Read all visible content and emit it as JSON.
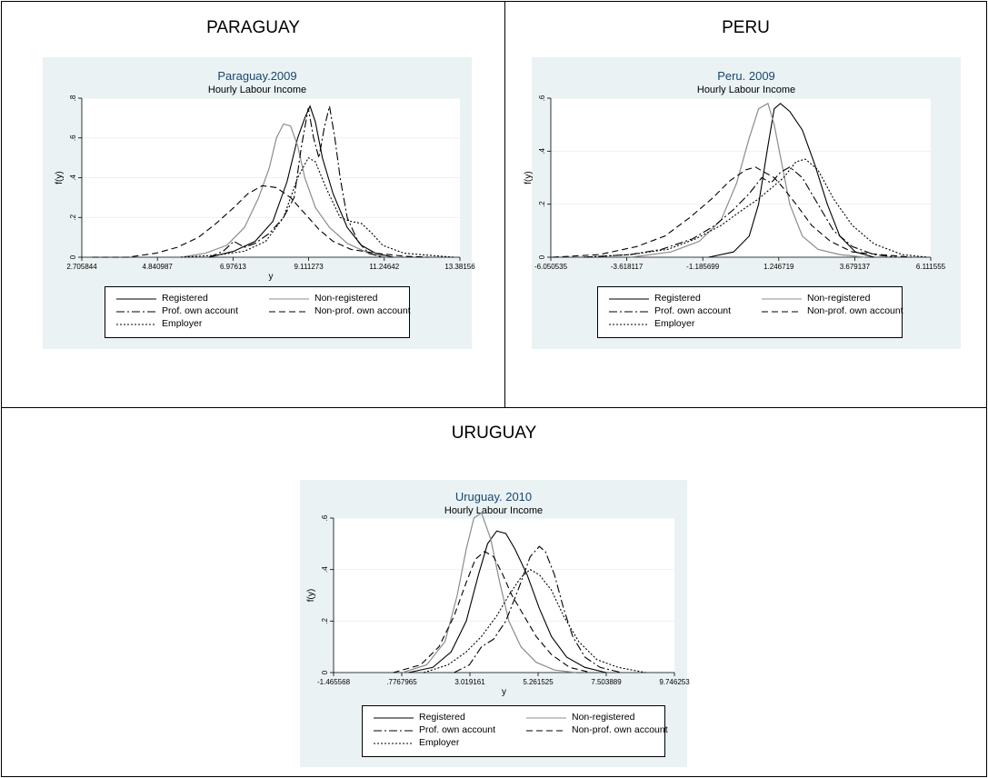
{
  "cells": {
    "paraguay": "PARAGUAY",
    "peru": "PERU",
    "uruguay": "URUGUAY"
  },
  "legend_labels": [
    "Registered",
    "Non-registered",
    "Prof. own account",
    "Non-prof. own account",
    "Employer"
  ],
  "chart_data": [
    {
      "type": "line",
      "title": "Paraguay.2009",
      "subtitle": "Hourly Labour Income",
      "xlabel": "y",
      "ylabel": "f(y)",
      "xlim": [
        2.705844,
        13.38156
      ],
      "ylim": [
        0,
        0.8
      ],
      "xticks": [
        "2.705844",
        "4.840987",
        "6.97613",
        "9.111273",
        "11.24642",
        "13.38156"
      ],
      "yticks": [
        "0",
        ".2",
        ".4",
        ".6",
        ".8"
      ],
      "grid": true,
      "legend_position": "bottom",
      "series": [
        {
          "name": "Registered",
          "style": "solid",
          "color": "#000000",
          "x": [
            6.3,
            7.0,
            7.6,
            8.1,
            8.5,
            8.8,
            9.0,
            9.15,
            9.3,
            9.5,
            9.8,
            10.2,
            10.6,
            11.0,
            11.5
          ],
          "y": [
            0.0,
            0.03,
            0.08,
            0.18,
            0.38,
            0.6,
            0.7,
            0.76,
            0.68,
            0.5,
            0.32,
            0.15,
            0.06,
            0.02,
            0.0
          ]
        },
        {
          "name": "Non-registered",
          "style": "solid",
          "color": "#8c8c8c",
          "x": [
            5.5,
            6.2,
            6.8,
            7.3,
            7.7,
            8.0,
            8.2,
            8.4,
            8.6,
            8.8,
            9.0,
            9.3,
            9.7,
            10.2,
            10.8,
            11.3
          ],
          "y": [
            0.0,
            0.02,
            0.06,
            0.15,
            0.3,
            0.45,
            0.6,
            0.67,
            0.66,
            0.56,
            0.4,
            0.25,
            0.15,
            0.07,
            0.02,
            0.0
          ]
        },
        {
          "name": "Prof. own account",
          "style": "dashdot",
          "color": "#000000",
          "x": [
            6.3,
            6.7,
            7.0,
            7.3,
            7.6,
            8.0,
            8.4,
            8.7,
            8.9,
            9.1,
            9.25,
            9.4,
            9.55,
            9.7,
            9.85,
            10.0,
            10.2,
            10.5,
            10.8,
            11.2
          ],
          "y": [
            0.0,
            0.03,
            0.08,
            0.05,
            0.07,
            0.12,
            0.2,
            0.3,
            0.55,
            0.75,
            0.6,
            0.5,
            0.65,
            0.76,
            0.6,
            0.4,
            0.2,
            0.08,
            0.02,
            0.0
          ]
        },
        {
          "name": "Non-prof. own account",
          "style": "dashed",
          "color": "#000000",
          "x": [
            3.0,
            4.0,
            4.8,
            5.4,
            6.0,
            6.5,
            7.0,
            7.4,
            7.8,
            8.2,
            8.6,
            9.0,
            9.4,
            9.8,
            10.3,
            11.0,
            11.8,
            12.5
          ],
          "y": [
            0.0,
            0.0,
            0.02,
            0.05,
            0.1,
            0.17,
            0.25,
            0.32,
            0.36,
            0.35,
            0.3,
            0.22,
            0.14,
            0.08,
            0.04,
            0.02,
            0.005,
            0.0
          ]
        },
        {
          "name": "Employer",
          "style": "dotted",
          "color": "#000000",
          "x": [
            5.5,
            6.5,
            7.3,
            7.9,
            8.4,
            8.8,
            9.1,
            9.3,
            9.6,
            10.0,
            10.3,
            10.6,
            10.9,
            11.2,
            11.8,
            12.5,
            13.2
          ],
          "y": [
            0.0,
            0.01,
            0.03,
            0.08,
            0.2,
            0.4,
            0.5,
            0.48,
            0.35,
            0.2,
            0.18,
            0.17,
            0.12,
            0.06,
            0.02,
            0.01,
            0.0
          ]
        }
      ]
    },
    {
      "type": "line",
      "title": "Peru. 2009",
      "subtitle": "Hourly Labour Income",
      "xlabel": "",
      "ylabel": "f(y)",
      "xlim": [
        -6.050535,
        6.111555
      ],
      "ylim": [
        0,
        0.6
      ],
      "xticks": [
        "-6.050535",
        "-3.618117",
        "-1.185699",
        "1.246719",
        "3.679137",
        "6.111555"
      ],
      "yticks": [
        "0",
        ".2",
        ".4",
        ".6"
      ],
      "grid": true,
      "legend_position": "bottom",
      "series": [
        {
          "name": "Registered",
          "style": "solid",
          "color": "#000000",
          "x": [
            -1.0,
            -0.2,
            0.3,
            0.6,
            0.9,
            1.1,
            1.3,
            1.6,
            2.0,
            2.4,
            2.8,
            3.2,
            3.7,
            4.3
          ],
          "y": [
            0.0,
            0.02,
            0.08,
            0.2,
            0.42,
            0.56,
            0.58,
            0.55,
            0.48,
            0.35,
            0.2,
            0.08,
            0.02,
            0.0
          ]
        },
        {
          "name": "Non-registered",
          "style": "solid",
          "color": "#8c8c8c",
          "x": [
            -3.5,
            -2.2,
            -1.3,
            -0.6,
            -0.1,
            0.3,
            0.6,
            0.9,
            1.1,
            1.3,
            1.6,
            2.0,
            2.5,
            3.2,
            4.0
          ],
          "y": [
            0.0,
            0.02,
            0.06,
            0.14,
            0.28,
            0.45,
            0.56,
            0.58,
            0.5,
            0.38,
            0.2,
            0.08,
            0.03,
            0.01,
            0.0
          ]
        },
        {
          "name": "Prof. own account",
          "style": "dashdot",
          "color": "#000000",
          "x": [
            -5.0,
            -3.5,
            -2.5,
            -1.5,
            -0.8,
            -0.2,
            0.3,
            0.7,
            1.0,
            1.3,
            1.6,
            2.0,
            2.5,
            3.0,
            3.6,
            4.3,
            5.0
          ],
          "y": [
            0.0,
            0.01,
            0.03,
            0.07,
            0.12,
            0.18,
            0.24,
            0.3,
            0.28,
            0.32,
            0.34,
            0.3,
            0.2,
            0.1,
            0.04,
            0.01,
            0.0
          ]
        },
        {
          "name": "Non-prof. own account",
          "style": "dashed",
          "color": "#000000",
          "x": [
            -6.0,
            -4.5,
            -3.3,
            -2.4,
            -1.6,
            -0.9,
            -0.3,
            0.2,
            0.5,
            0.8,
            1.1,
            1.4,
            1.8,
            2.3,
            2.9,
            3.6,
            4.5,
            5.5
          ],
          "y": [
            0.0,
            0.01,
            0.04,
            0.08,
            0.15,
            0.22,
            0.29,
            0.33,
            0.34,
            0.32,
            0.3,
            0.26,
            0.2,
            0.12,
            0.06,
            0.02,
            0.01,
            0.0
          ]
        },
        {
          "name": "Employer",
          "style": "dotted",
          "color": "#000000",
          "x": [
            -5.0,
            -3.5,
            -2.3,
            -1.4,
            -0.6,
            0.1,
            0.6,
            1.0,
            1.4,
            1.8,
            2.1,
            2.5,
            3.0,
            3.6,
            4.3,
            5.2,
            6.0
          ],
          "y": [
            0.0,
            0.01,
            0.03,
            0.07,
            0.12,
            0.18,
            0.22,
            0.26,
            0.3,
            0.36,
            0.37,
            0.33,
            0.22,
            0.12,
            0.05,
            0.01,
            0.0
          ]
        }
      ]
    },
    {
      "type": "line",
      "title": "Uruguay. 2010",
      "subtitle": "Hourly Labour Income",
      "xlabel": "y",
      "ylabel": "f(y)",
      "xlim": [
        -1.465568,
        9.746253
      ],
      "ylim": [
        0,
        0.6
      ],
      "xticks": [
        "-1.465568",
        ".7767965",
        "3.019161",
        "5.261525",
        "7.503889",
        "9.746253"
      ],
      "yticks": [
        "0",
        ".2",
        ".4",
        ".6"
      ],
      "grid": true,
      "legend_position": "bottom",
      "series": [
        {
          "name": "Registered",
          "style": "solid",
          "color": "#000000",
          "x": [
            1.0,
            1.8,
            2.4,
            2.9,
            3.3,
            3.6,
            3.9,
            4.2,
            4.5,
            4.9,
            5.3,
            5.7,
            6.2,
            6.8,
            7.5
          ],
          "y": [
            0.0,
            0.02,
            0.08,
            0.2,
            0.38,
            0.5,
            0.55,
            0.54,
            0.48,
            0.38,
            0.25,
            0.14,
            0.06,
            0.02,
            0.0
          ]
        },
        {
          "name": "Non-registered",
          "style": "solid",
          "color": "#8c8c8c",
          "x": [
            0.8,
            1.6,
            2.2,
            2.6,
            2.9,
            3.15,
            3.4,
            3.7,
            4.0,
            4.3,
            4.7,
            5.2,
            5.8,
            6.5
          ],
          "y": [
            0.0,
            0.03,
            0.12,
            0.3,
            0.48,
            0.6,
            0.62,
            0.52,
            0.35,
            0.2,
            0.1,
            0.04,
            0.01,
            0.0
          ]
        },
        {
          "name": "Prof. own account",
          "style": "dashdot",
          "color": "#000000",
          "x": [
            2.5,
            3.0,
            3.4,
            3.8,
            4.2,
            4.6,
            5.0,
            5.3,
            5.5,
            5.8,
            6.1,
            6.4,
            6.8,
            7.3,
            8.0
          ],
          "y": [
            0.0,
            0.03,
            0.1,
            0.13,
            0.2,
            0.32,
            0.45,
            0.49,
            0.47,
            0.38,
            0.25,
            0.14,
            0.06,
            0.02,
            0.0
          ]
        },
        {
          "name": "Non-prof. own account",
          "style": "dashed",
          "color": "#000000",
          "x": [
            0.5,
            1.4,
            2.0,
            2.5,
            2.9,
            3.2,
            3.5,
            3.8,
            4.1,
            4.4,
            4.8,
            5.2,
            5.7,
            6.3,
            7.0
          ],
          "y": [
            0.0,
            0.03,
            0.1,
            0.22,
            0.35,
            0.44,
            0.47,
            0.45,
            0.38,
            0.3,
            0.22,
            0.14,
            0.07,
            0.02,
            0.0
          ]
        },
        {
          "name": "Employer",
          "style": "dotted",
          "color": "#000000",
          "x": [
            1.5,
            2.3,
            2.9,
            3.4,
            3.9,
            4.3,
            4.7,
            5.0,
            5.3,
            5.7,
            6.1,
            6.6,
            7.2,
            7.9,
            8.8
          ],
          "y": [
            0.0,
            0.03,
            0.08,
            0.14,
            0.22,
            0.3,
            0.37,
            0.4,
            0.38,
            0.32,
            0.22,
            0.12,
            0.05,
            0.02,
            0.0
          ]
        }
      ]
    }
  ]
}
